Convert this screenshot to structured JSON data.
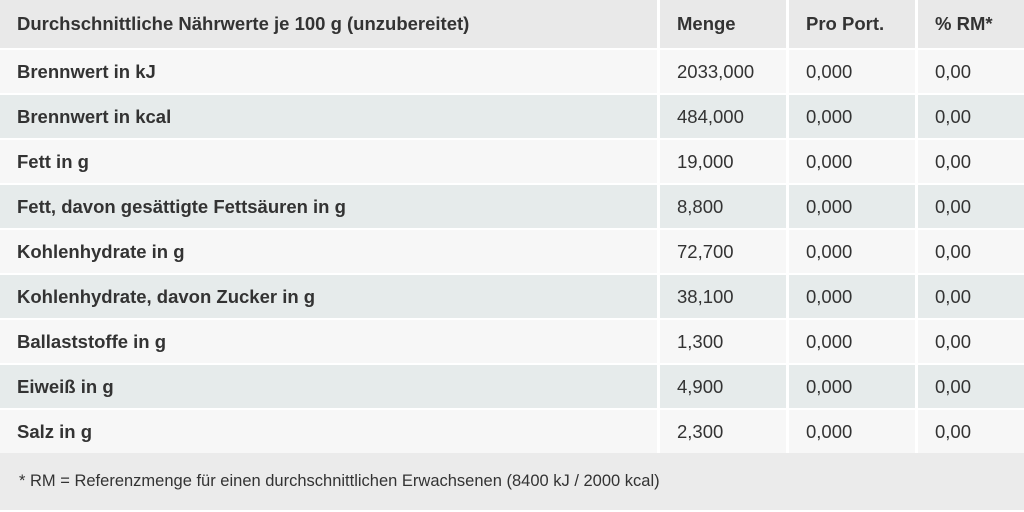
{
  "table": {
    "header": [
      "Durchschnittliche Nährwerte je 100 g (unzubereitet)",
      "Menge",
      "Pro Port.",
      "% RM*"
    ],
    "rows": [
      [
        "Brennwert in kJ",
        "2033,000",
        "0,000",
        "0,00"
      ],
      [
        "Brennwert in kcal",
        "484,000",
        "0,000",
        "0,00"
      ],
      [
        "Fett in g",
        "19,000",
        "0,000",
        "0,00"
      ],
      [
        "Fett, davon gesättigte Fettsäuren in g",
        "8,800",
        "0,000",
        "0,00"
      ],
      [
        "Kohlenhydrate in g",
        "72,700",
        "0,000",
        "0,00"
      ],
      [
        "Kohlenhydrate, davon Zucker in g",
        "38,100",
        "0,000",
        "0,00"
      ],
      [
        "Ballaststoffe in g",
        "1,300",
        "0,000",
        "0,00"
      ],
      [
        "Eiweiß in g",
        "4,900",
        "0,000",
        "0,00"
      ],
      [
        "Salz in g",
        "2,300",
        "0,000",
        "0,00"
      ]
    ]
  },
  "footnote": "* RM = Referenzmenge für einen durchschnittlichen Erwachsenen (8400 kJ / 2000 kcal)"
}
